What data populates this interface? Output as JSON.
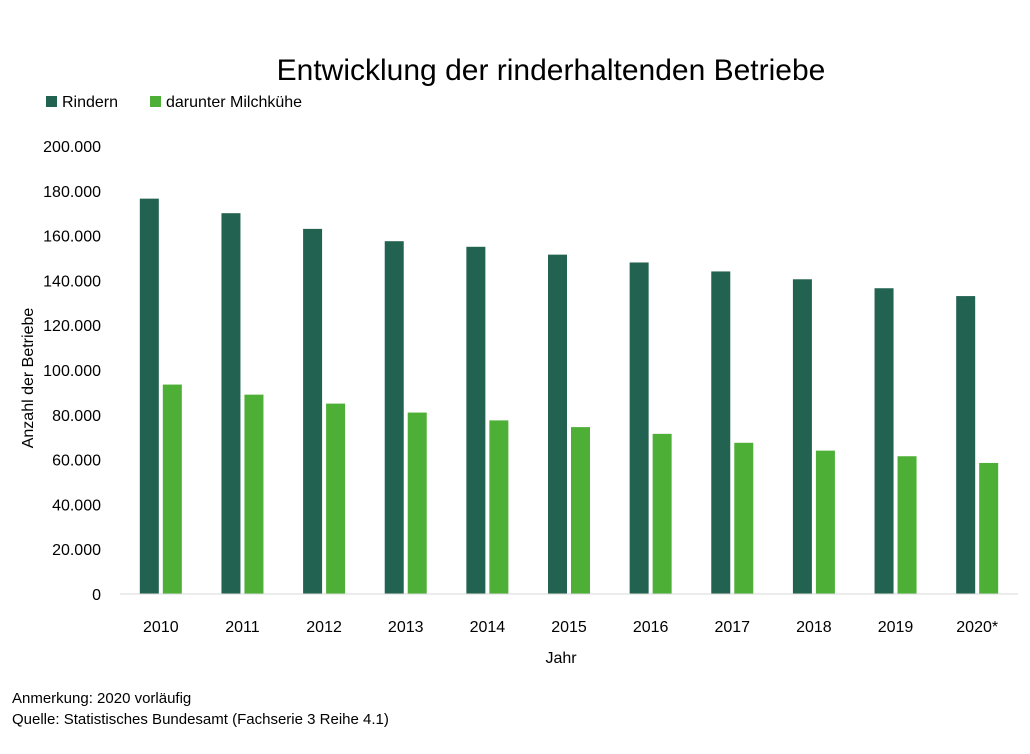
{
  "chart_data": {
    "type": "bar",
    "title": "Entwicklung der rinderhaltenden Betriebe",
    "xlabel": "Jahr",
    "ylabel": "Anzahl der Betriebe",
    "categories": [
      "2010",
      "2011",
      "2012",
      "2013",
      "2014",
      "2015",
      "2016",
      "2017",
      "2018",
      "2019",
      "2020*"
    ],
    "series": [
      {
        "name": "Rindern",
        "color": "#226250",
        "values": [
          176500,
          170000,
          163000,
          157500,
          155000,
          151500,
          148000,
          144000,
          140500,
          136500,
          133000
        ]
      },
      {
        "name": "darunter Milchkühe",
        "color": "#4daf35",
        "values": [
          93500,
          89000,
          85000,
          81000,
          77500,
          74500,
          71500,
          67500,
          64000,
          61500,
          58500
        ]
      }
    ],
    "ylim": [
      0,
      200000
    ],
    "yticks": [
      0,
      20000,
      40000,
      60000,
      80000,
      100000,
      120000,
      140000,
      160000,
      180000,
      200000
    ],
    "ytick_labels": [
      "0",
      "20.000",
      "40.000",
      "60.000",
      "80.000",
      "100.000",
      "120.000",
      "140.000",
      "160.000",
      "180.000",
      "200.000"
    ],
    "grid": false,
    "legend": "top-left"
  },
  "notes": {
    "remark": "Anmerkung: 2020 vorläufig",
    "source": "Quelle: Statistisches Bundesamt (Fachserie 3 Reihe 4.1)"
  }
}
